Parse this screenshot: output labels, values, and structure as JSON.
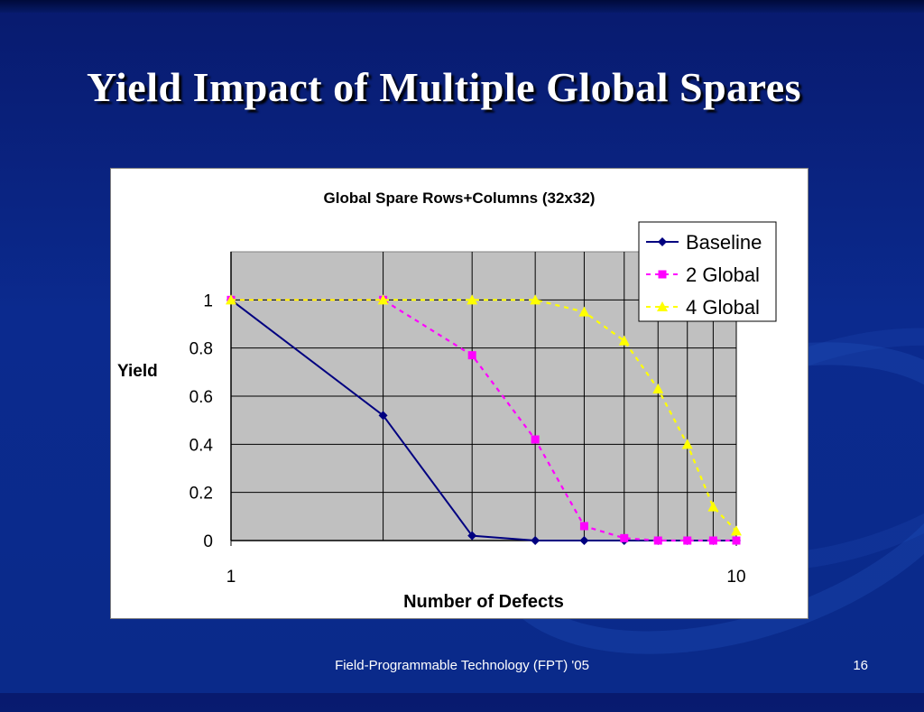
{
  "slide": {
    "title": "Yield Impact of Multiple Global Spares",
    "footer": "Field-Programmable Technology (FPT) '05",
    "page_number": "16"
  },
  "colors": {
    "background": "#0b2a8e",
    "plot_area": "#c0c0c0",
    "baseline": "#000080",
    "global2": "#ff00ff",
    "global4": "#ffff00"
  },
  "chart_data": {
    "type": "line",
    "title": "Global Spare Rows+Columns (32x32)",
    "xlabel": "Number of Defects",
    "ylabel": "Yield",
    "x_scale": "log",
    "xlim": [
      1,
      10
    ],
    "ylim": [
      0,
      1.2
    ],
    "x_tick_labels": [
      "1",
      "10"
    ],
    "y_tick_labels": [
      "0",
      "0.2",
      "0.4",
      "0.6",
      "0.8",
      "1"
    ],
    "grid": true,
    "legend_position": "top-right",
    "x": [
      1,
      2,
      3,
      4,
      5,
      6,
      7,
      8,
      9,
      10
    ],
    "series": [
      {
        "name": "Baseline",
        "marker": "diamond",
        "line": "solid",
        "values": [
          1.0,
          0.52,
          0.02,
          0.0,
          0.0,
          0.0,
          0.0,
          0.0,
          0.0,
          0.0
        ]
      },
      {
        "name": "2 Global",
        "marker": "square",
        "line": "dashed",
        "values": [
          1.0,
          1.0,
          0.77,
          0.42,
          0.06,
          0.01,
          0.0,
          0.0,
          0.0,
          0.0
        ]
      },
      {
        "name": "4 Global",
        "marker": "triangle",
        "line": "dashed",
        "values": [
          1.0,
          1.0,
          1.0,
          1.0,
          0.95,
          0.83,
          0.63,
          0.4,
          0.14,
          0.04
        ]
      }
    ]
  }
}
